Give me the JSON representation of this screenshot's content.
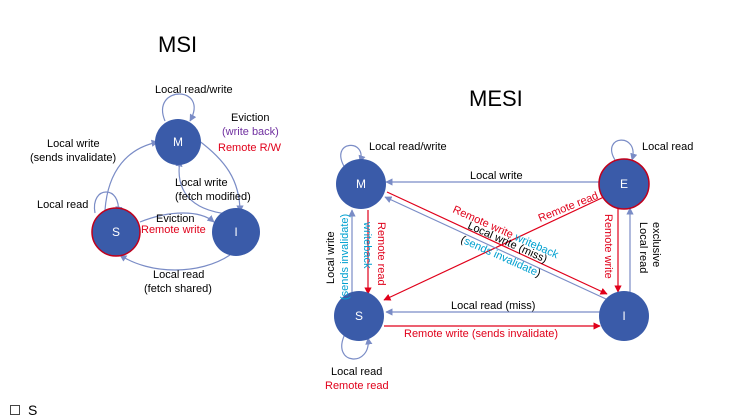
{
  "msi": {
    "title": "MSI",
    "states": {
      "m": "M",
      "s": "S",
      "i": "I"
    },
    "labels": {
      "m_self": "Local read/write",
      "eviction_wb_1": "Eviction",
      "eviction_wb_2": "(write back)",
      "remote_rw": "Remote R/W",
      "s_to_m_1": "Local write",
      "s_to_m_2": "(sends invalidate)",
      "i_to_m_1": "Local write",
      "i_to_m_2": "(fetch modified)",
      "s_self": "Local read",
      "s_to_i_1": "Eviction",
      "s_to_i_2": "Remote write",
      "i_to_s_1": "Local read",
      "i_to_s_2": "(fetch shared)"
    }
  },
  "mesi": {
    "title": "MESI",
    "states": {
      "m": "M",
      "e": "E",
      "s": "S",
      "i": "I"
    },
    "labels": {
      "m_self": "Local read/write",
      "e_self": "Local read",
      "e_to_m": "Local write",
      "e_to_s": "Remote read",
      "m_to_i_1a": "Remote write",
      "m_to_i_1b": "writeback",
      "i_to_m_1": "Local write (miss)",
      "i_to_m_2a": "(",
      "i_to_m_2b": "sends invalidate",
      "i_to_m_2c": ")",
      "s_to_m_1a": "Local write",
      "s_to_m_1b": "(sends invalidate)",
      "m_to_s_1a": "Remote read",
      "m_to_s_1b": "writeback",
      "e_to_i": "Remote write",
      "i_to_e_1": "Local read",
      "i_to_e_2": "exclusive",
      "i_to_s": "Local read (miss)",
      "s_to_i": "Remote write (sends invalidate)",
      "s_self_1": "Local read",
      "s_self_2": "Remote read"
    }
  },
  "footer": {
    "text": "S"
  },
  "colors": {
    "node_fill": "#3a5ba9",
    "invalid_border": "#c0001c",
    "local_edge": "#7a8cc6",
    "remote_edge": "#e0001a",
    "remote_text": "#e0001a",
    "purple_text": "#7030a0",
    "cyan_text": "#00a0d0"
  }
}
